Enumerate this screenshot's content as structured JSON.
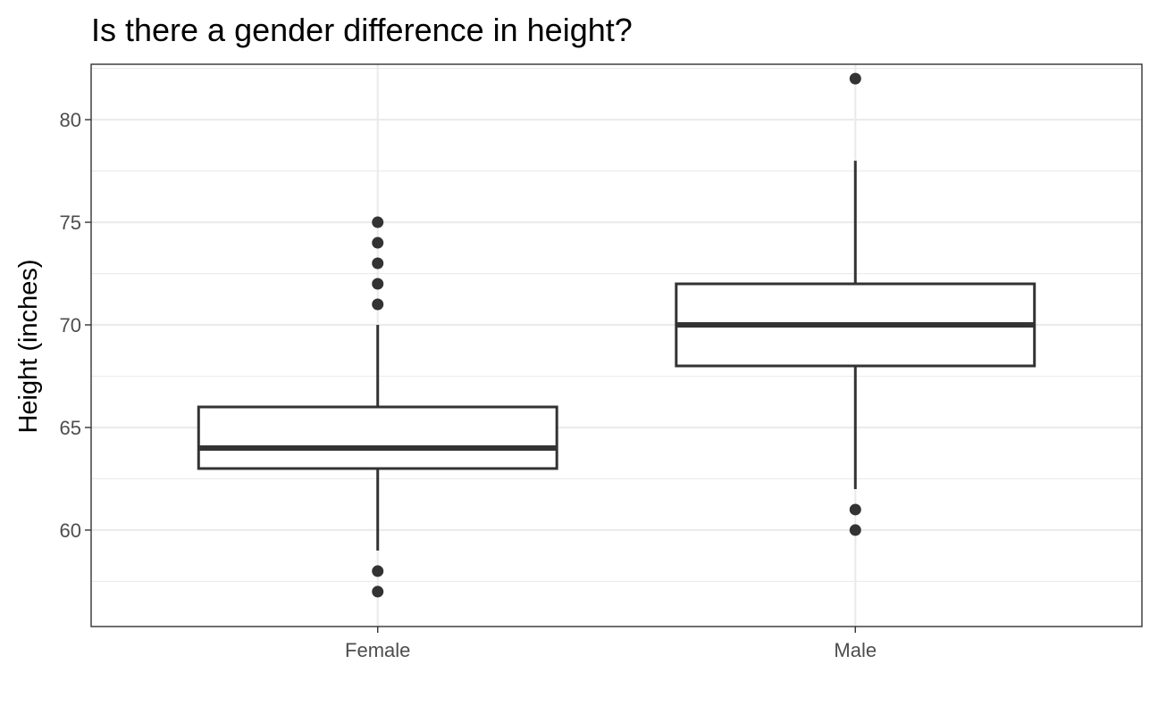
{
  "chart_data": {
    "type": "boxplot",
    "title": "Is there a gender difference in height?",
    "xlabel": "",
    "ylabel": "Height (inches)",
    "categories": [
      "Female",
      "Male"
    ],
    "ylim": [
      55.3,
      82.7
    ],
    "yticks": [
      60,
      65,
      70,
      75,
      80
    ],
    "grid": true,
    "boxes": [
      {
        "category": "Female",
        "whisker_low": 59,
        "q1": 63,
        "median": 64,
        "q3": 66,
        "whisker_high": 70,
        "outliers": [
          57,
          58,
          71,
          72,
          73,
          74,
          75
        ]
      },
      {
        "category": "Male",
        "whisker_low": 62,
        "q1": 68,
        "median": 70,
        "q3": 72,
        "whisker_high": 78,
        "outliers": [
          60,
          61,
          82
        ]
      }
    ]
  },
  "colors": {
    "box_line": "#333333",
    "outlier": "#333333",
    "grid": "#ebebeb",
    "panel_border": "#333333",
    "tick_text": "#4d4d4d"
  }
}
